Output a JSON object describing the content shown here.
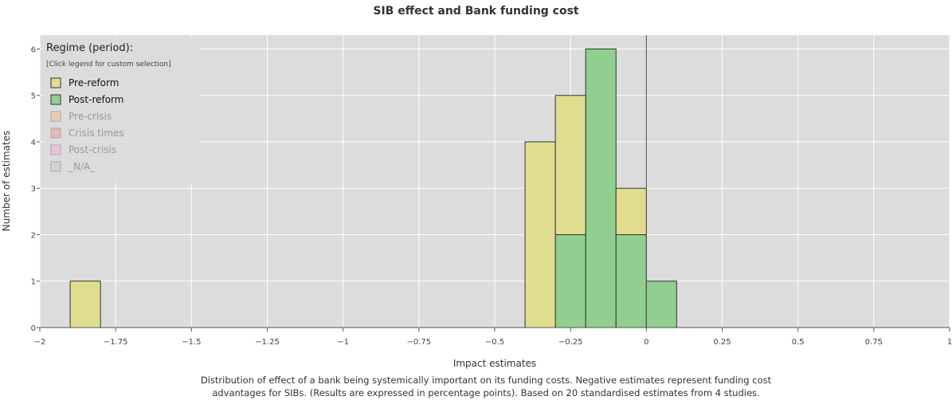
{
  "chart_data": {
    "type": "bar",
    "title": "SIB effect and Bank funding cost",
    "xlabel": "Impact estimates",
    "ylabel": "Number of estimates",
    "xlim": [
      -2,
      1
    ],
    "ylim": [
      0,
      6.3
    ],
    "xticks": [
      -2,
      -1.75,
      -1.5,
      -1.25,
      -1,
      -0.75,
      -0.5,
      -0.25,
      0,
      0.25,
      0.5,
      0.75,
      1
    ],
    "xtick_labels": [
      "−2",
      "−1.75",
      "−1.5",
      "−1.25",
      "−1",
      "−0.75",
      "−0.5",
      "−0.25",
      "0",
      "0.25",
      "0.5",
      "0.75",
      "1"
    ],
    "yticks": [
      0,
      1,
      2,
      3,
      4,
      5,
      6
    ],
    "ytick_labels": [
      "0",
      "1",
      "2",
      "3",
      "4",
      "5",
      "6"
    ],
    "bin_width": 0.1,
    "stacked": true,
    "grid": true,
    "reference_line_x": 0,
    "legend": {
      "position": "top-left",
      "title": "Regime (period):",
      "subtitle": "[Click legend for custom selection]",
      "items": [
        {
          "label": "Pre-reform",
          "color": "#e0dd8e",
          "active": true
        },
        {
          "label": "Post-reform",
          "color": "#90cf90",
          "active": true
        },
        {
          "label": "Pre-crisis",
          "color": "#efc9a4",
          "active": false
        },
        {
          "label": "Crisis times",
          "color": "#e8aeae",
          "active": false
        },
        {
          "label": "Post-crisis",
          "color": "#efbbdd",
          "active": false
        },
        {
          "label": "_N/A_",
          "color": "#cfcfcf",
          "active": false
        }
      ]
    },
    "series": [
      {
        "name": "Post-reform",
        "color": "#90cf90",
        "bins": [
          {
            "x0": -0.3,
            "x1": -0.2,
            "value": 2
          },
          {
            "x0": -0.2,
            "x1": -0.1,
            "value": 6
          },
          {
            "x0": -0.1,
            "x1": 0,
            "value": 2
          },
          {
            "x0": 0,
            "x1": 0.1,
            "value": 1
          }
        ]
      },
      {
        "name": "Pre-reform",
        "color": "#e0dd8e",
        "bins": [
          {
            "x0": -1.9,
            "x1": -1.8,
            "value": 1
          },
          {
            "x0": -0.4,
            "x1": -0.3,
            "value": 4
          },
          {
            "x0": -0.3,
            "x1": -0.2,
            "value": 3
          },
          {
            "x0": -0.1,
            "x1": 0,
            "value": 1
          }
        ]
      }
    ]
  },
  "caption": "Distribution of effect of a bank being systemically important on its funding costs. Negative estimates represent funding cost advantages for SIBs. (Results are expressed in percentage points). Based on 20 standardised estimates from 4 studies."
}
